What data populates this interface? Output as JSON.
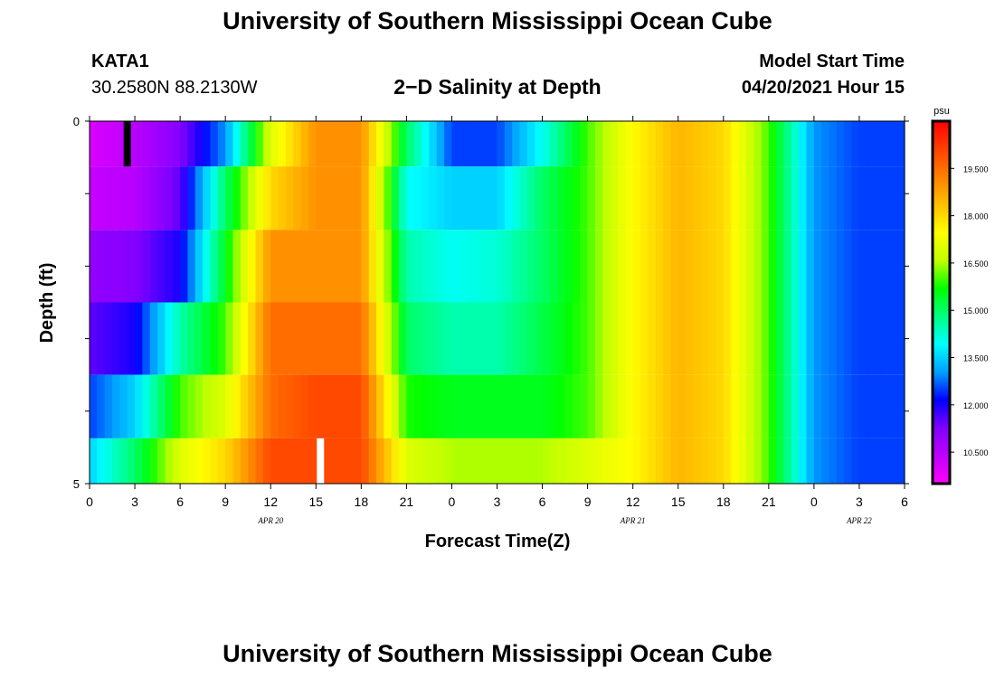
{
  "header": {
    "title": "University of Southern Mississippi Ocean Cube",
    "station_id": "KATA1",
    "station_coords": "30.2580N  88.2130W",
    "chart_title": "2−D Salinity at Depth",
    "start_label": "Model Start Time",
    "start_value": "04/20/2021 Hour 15"
  },
  "footer": {
    "title": "University of Southern Mississippi Ocean Cube"
  },
  "chart_data": {
    "type": "heatmap",
    "title": "2−D Salinity at Depth",
    "xlabel": "Forecast Time(Z)",
    "ylabel": "Depth (ft)",
    "xlim": [
      0,
      54
    ],
    "ylim": [
      0,
      5
    ],
    "x_tick_labels": [
      "0",
      "3",
      "6",
      "9",
      "12",
      "15",
      "18",
      "21",
      "0",
      "3",
      "6",
      "9",
      "12",
      "15",
      "18",
      "21",
      "0",
      "3",
      "6"
    ],
    "y_tick_labels": [
      "0",
      "5"
    ],
    "date_labels": [
      {
        "label": "APR 20",
        "hour": 12
      },
      {
        "label": "APR 21",
        "hour": 36
      },
      {
        "label": "APR 22",
        "hour": 51
      }
    ],
    "colorbar": {
      "unit": "psu",
      "min": 9.5,
      "max": 21.0,
      "ticks": [
        "10.500",
        "12.000",
        "13.500",
        "15.000",
        "16.500",
        "18.000",
        "19.500"
      ],
      "colors": [
        "#ff00ff",
        "#c000ff",
        "#8000ff",
        "#0000ff",
        "#00a0ff",
        "#00ffff",
        "#00ff80",
        "#00ff00",
        "#c0ff00",
        "#ffff00",
        "#ffc000",
        "#ff8000",
        "#ff4000",
        "#ff0000"
      ]
    },
    "time_hours": [
      0,
      3,
      6,
      9,
      12,
      15,
      18,
      21,
      24,
      27,
      30,
      33,
      36,
      39,
      42,
      45,
      48,
      51,
      54
    ],
    "layers": [
      {
        "depth": 0.25,
        "values": [
          10.0,
          10.5,
          11.2,
          13.0,
          17.0,
          19.0,
          19.0,
          15.0,
          12.5,
          12.5,
          14.0,
          16.0,
          17.5,
          18.5,
          18.0,
          16.0,
          13.0,
          12.5,
          12.5
        ]
      },
      {
        "depth": 1.0,
        "values": [
          10.3,
          10.5,
          11.5,
          15.0,
          18.0,
          19.0,
          19.0,
          14.0,
          13.5,
          13.5,
          15.0,
          16.0,
          17.5,
          18.5,
          18.0,
          16.0,
          13.0,
          12.5,
          12.5
        ]
      },
      {
        "depth": 2.0,
        "values": [
          11.0,
          11.2,
          12.0,
          15.5,
          19.0,
          19.0,
          19.0,
          14.5,
          14.0,
          14.2,
          15.0,
          16.0,
          17.5,
          18.5,
          18.0,
          16.0,
          13.0,
          12.5,
          12.5
        ]
      },
      {
        "depth": 3.0,
        "values": [
          11.5,
          12.0,
          14.5,
          16.0,
          19.5,
          19.5,
          19.5,
          15.0,
          14.5,
          14.5,
          15.2,
          16.0,
          17.5,
          18.5,
          18.0,
          16.0,
          13.0,
          12.5,
          12.5
        ]
      },
      {
        "depth": 4.0,
        "values": [
          12.5,
          13.5,
          16.0,
          17.0,
          19.5,
          20.0,
          20.0,
          15.8,
          15.5,
          15.5,
          15.5,
          16.0,
          17.5,
          18.5,
          18.0,
          16.0,
          13.0,
          12.5,
          12.5
        ]
      },
      {
        "depth": 4.75,
        "values": [
          13.5,
          15.0,
          17.0,
          18.0,
          20.0,
          20.0,
          20.0,
          17.0,
          16.5,
          16.5,
          16.5,
          17.0,
          17.5,
          18.5,
          18.0,
          16.0,
          13.0,
          12.5,
          12.5
        ]
      }
    ],
    "markers": [
      {
        "color": "#000000",
        "hour": 2.5,
        "layer": 0
      },
      {
        "color": "#ffffff",
        "hour": 15.3,
        "layer": 5
      }
    ]
  }
}
